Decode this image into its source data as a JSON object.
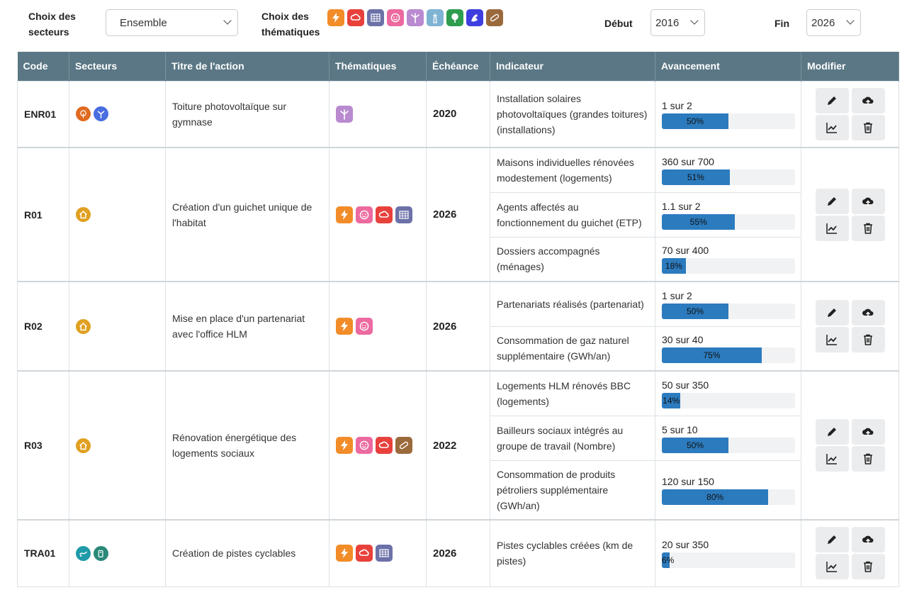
{
  "filters": {
    "secteurs_label": "Choix des secteurs",
    "secteurs_value": "Ensemble",
    "thematiques_label": "Choix des thématiques",
    "debut_label": "Début",
    "debut_value": "2016",
    "fin_label": "Fin",
    "fin_value": "2026",
    "theme_icons": [
      {
        "name": "lightning-icon",
        "color": "#f28c28"
      },
      {
        "name": "co2-cloud-icon",
        "color": "#e8413c"
      },
      {
        "name": "solar-panel-icon",
        "color": "#6c71a8"
      },
      {
        "name": "smiley-icon",
        "color": "#ec6aa0"
      },
      {
        "name": "wind-turbine-icon",
        "color": "#b98ad0"
      },
      {
        "name": "lighthouse-icon",
        "color": "#7fb3d3"
      },
      {
        "name": "tree-icon",
        "color": "#2e9d4e"
      },
      {
        "name": "arm-icon",
        "color": "#3f3fe0"
      },
      {
        "name": "bandage-icon",
        "color": "#9b6a3c"
      }
    ]
  },
  "table": {
    "headers": [
      "Code",
      "Secteurs",
      "Titre de l'action",
      "Thématiques",
      "Échéance",
      "Indicateur",
      "Avancement",
      "Modifier"
    ]
  },
  "colors": {
    "header_bg": "#5b7785",
    "progress": "#2c7bbe"
  },
  "rows": [
    {
      "code": "ENR01",
      "title": "Toiture photovoltaïque sur gymnase",
      "echeance": "2020",
      "sectors": [
        {
          "name": "agriculture-icon",
          "color": "#e06a20"
        },
        {
          "name": "wind-sector-icon",
          "color": "#4a6de0"
        }
      ],
      "themes": [
        "wind-turbine-icon"
      ],
      "indicators": [
        {
          "label": "Installation solaires photovoltaïques (grandes toitures) (installations)",
          "progress_text": "1 sur 2",
          "percent": 50,
          "percent_label": "50%"
        }
      ]
    },
    {
      "code": "R01",
      "title": "Création d'un guichet unique de l'habitat",
      "echeance": "2026",
      "sectors": [
        {
          "name": "house-icon",
          "color": "#e0a020"
        }
      ],
      "themes": [
        "lightning-icon",
        "smiley-icon",
        "co2-cloud-icon",
        "solar-panel-icon"
      ],
      "indicators": [
        {
          "label": "Maisons individuelles rénovées modestement (logements)",
          "progress_text": "360 sur 700",
          "percent": 51,
          "percent_label": "51%"
        },
        {
          "label": "Agents affectés au fonctionnement du guichet (ETP)",
          "progress_text": "1.1 sur 2",
          "percent": 55,
          "percent_label": "55%"
        },
        {
          "label": "Dossiers accompagnés (ménages)",
          "progress_text": "70 sur 400",
          "percent": 18,
          "percent_label": "18%"
        }
      ]
    },
    {
      "code": "R02",
      "title": "Mise en place d'un partenariat avec l'office HLM",
      "echeance": "2026",
      "sectors": [
        {
          "name": "house-icon",
          "color": "#e0a020"
        }
      ],
      "themes": [
        "lightning-icon",
        "smiley-icon"
      ],
      "indicators": [
        {
          "label": "Partenariats réalisés (partenariat)",
          "progress_text": "1 sur 2",
          "percent": 50,
          "percent_label": "50%"
        },
        {
          "label": "Consommation de gaz naturel supplémentaire (GWh/an)",
          "progress_text": "30 sur 40",
          "percent": 75,
          "percent_label": "75%"
        }
      ]
    },
    {
      "code": "R03",
      "title": "Rénovation énergétique des logements sociaux",
      "echeance": "2022",
      "sectors": [
        {
          "name": "house-icon",
          "color": "#e0a020"
        }
      ],
      "themes": [
        "lightning-icon",
        "smiley-icon",
        "co2-cloud-icon",
        "bandage-icon"
      ],
      "indicators": [
        {
          "label": "Logements HLM rénovés BBC (logements)",
          "progress_text": "50 sur 350",
          "percent": 14,
          "percent_label": "14%"
        },
        {
          "label": "Bailleurs sociaux intégrés au groupe de travail (Nombre)",
          "progress_text": "5 sur 10",
          "percent": 50,
          "percent_label": "50%"
        },
        {
          "label": "Consommation de produits pétroliers supplémentaire (GWh/an)",
          "progress_text": "120 sur 150",
          "percent": 80,
          "percent_label": "80%"
        }
      ]
    },
    {
      "code": "TRA01",
      "title": "Création de pistes cyclables",
      "echeance": "2026",
      "sectors": [
        {
          "name": "transport-icon",
          "color": "#1e9aa8"
        },
        {
          "name": "fuel-icon",
          "color": "#2a8a7a"
        }
      ],
      "themes": [
        "lightning-icon",
        "co2-cloud-icon",
        "solar-panel-icon"
      ],
      "indicators": [
        {
          "label": "Pistes cyclables créées (km de pistes)",
          "progress_text": "20 sur 350",
          "percent": 6,
          "percent_label": "6%"
        }
      ]
    }
  ]
}
